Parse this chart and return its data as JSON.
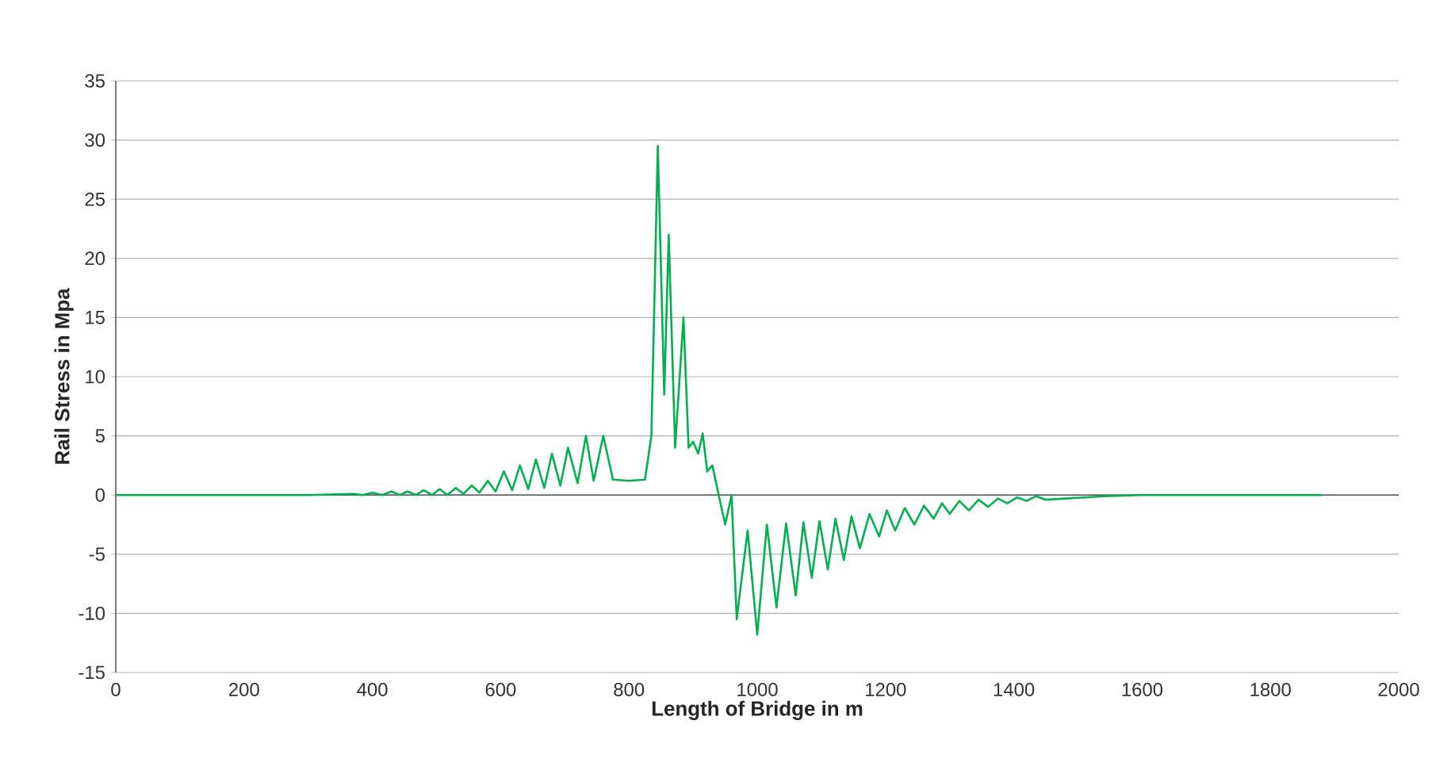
{
  "chart_data": {
    "type": "line",
    "xlabel": "Length of Bridge in m",
    "ylabel": "Rail Stress in Mpa",
    "xlim": [
      0,
      2000
    ],
    "xticks": [
      0,
      200,
      400,
      600,
      800,
      1000,
      1200,
      1400,
      1600,
      1800,
      2000
    ],
    "ylim": [
      -15,
      35
    ],
    "yticks": [
      -15,
      -10,
      -5,
      0,
      5,
      10,
      15,
      20,
      25,
      30,
      35
    ],
    "grid": "y",
    "marker": "none",
    "line_style": "solid",
    "series": [
      {
        "color": "#00b050",
        "x": [
          0,
          300,
          370,
          385,
          400,
          415,
          430,
          443,
          455,
          468,
          480,
          493,
          505,
          517,
          530,
          542,
          555,
          567,
          580,
          592,
          605,
          618,
          630,
          643,
          655,
          668,
          680,
          693,
          705,
          720,
          733,
          745,
          760,
          775,
          800,
          825,
          835,
          845,
          855,
          862,
          872,
          885,
          893,
          900,
          908,
          915,
          922,
          930,
          940,
          950,
          960,
          968,
          985,
          1000,
          1015,
          1030,
          1045,
          1060,
          1072,
          1085,
          1097,
          1110,
          1122,
          1135,
          1147,
          1160,
          1175,
          1190,
          1202,
          1215,
          1230,
          1245,
          1260,
          1275,
          1288,
          1300,
          1315,
          1330,
          1345,
          1360,
          1375,
          1390,
          1405,
          1420,
          1435,
          1450,
          1480,
          1510,
          1540,
          1600,
          1700,
          1880
        ],
        "values": [
          0,
          0,
          0.1,
          0,
          0.2,
          0,
          0.3,
          0,
          0.3,
          0,
          0.4,
          0,
          0.5,
          0,
          0.6,
          0.1,
          0.8,
          0.2,
          1.2,
          0.3,
          2,
          0.4,
          2.5,
          0.5,
          3,
          0.6,
          3.5,
          0.8,
          4,
          1,
          5,
          1.2,
          5,
          1.3,
          1.2,
          1.3,
          5,
          29.5,
          8.5,
          22,
          4,
          15,
          4,
          4.5,
          3.5,
          5.2,
          2,
          2.5,
          0,
          -2.5,
          0,
          -10.5,
          -3,
          -11.8,
          -2.5,
          -9.5,
          -2.4,
          -8.5,
          -2.3,
          -7,
          -2.2,
          -6.3,
          -2,
          -5.5,
          -1.8,
          -4.5,
          -1.6,
          -3.5,
          -1.3,
          -3,
          -1.1,
          -2.5,
          -0.9,
          -2,
          -0.7,
          -1.6,
          -0.5,
          -1.3,
          -0.4,
          -1,
          -0.3,
          -0.7,
          -0.2,
          -0.5,
          -0.1,
          -0.4,
          -0.3,
          -0.2,
          -0.1,
          0,
          0,
          0
        ]
      }
    ]
  }
}
